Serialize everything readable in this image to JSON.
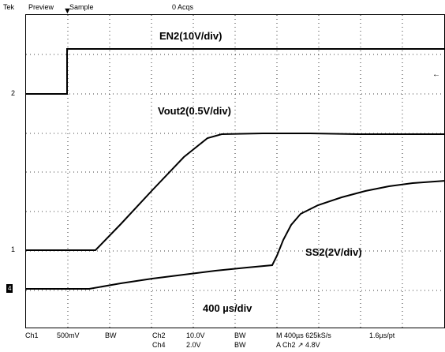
{
  "status_bar": {
    "brand": "Tek",
    "mode": "Preview",
    "acq_mode": "Sample",
    "acqs": "0 Acqs"
  },
  "traces": {
    "en2_label": "EN2(10V/div)",
    "vout2_label": "Vout2(0.5V/div)",
    "ss2_label": "SS2(2V/div)",
    "timebase_label": "400 µs/div"
  },
  "markers": {
    "ch2": "2",
    "ch1": "1",
    "ch4": "4"
  },
  "bottom_bar": {
    "ch1": "Ch1",
    "ch1_scale": "500mV",
    "ch1_bw": "BW",
    "ch2": "Ch2",
    "ch2_scale": "10.0V",
    "ch2_bw": "BW",
    "ch4": "Ch4",
    "ch4_scale": "2.0V",
    "ch4_bw": "BW",
    "time": "M 400µs 625kS/s",
    "pt": "1.6µs/pt",
    "trigger": "A  Ch2  ↗  4.8V"
  }
}
